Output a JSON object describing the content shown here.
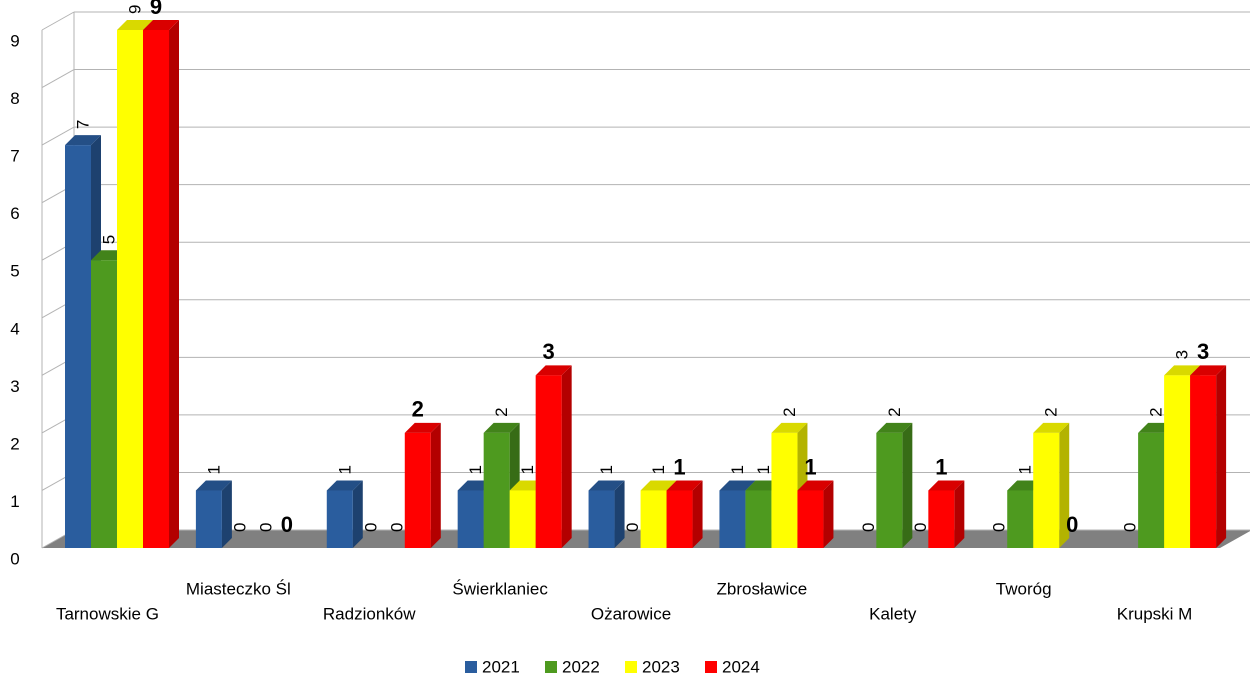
{
  "chart_data": {
    "type": "bar3d",
    "categories": [
      "Tarnowskie G",
      "Miasteczko Śl",
      "Radzionków",
      "Świerklaniec",
      "Ożarowice",
      "Zbrosławice",
      "Kalety",
      "Tworóg",
      "Krupski M"
    ],
    "series": [
      {
        "name": "2021",
        "color": "#2a5d9e",
        "values": [
          7,
          1,
          1,
          1,
          1,
          1,
          0,
          0,
          0
        ]
      },
      {
        "name": "2022",
        "color": "#4e9a1f",
        "values": [
          5,
          0,
          0,
          2,
          0,
          1,
          2,
          1,
          2
        ]
      },
      {
        "name": "2023",
        "color": "#ffff00",
        "values": [
          9,
          0,
          0,
          1,
          1,
          2,
          0,
          2,
          3
        ]
      },
      {
        "name": "2024",
        "color": "#ff0000",
        "values": [
          9,
          0,
          2,
          3,
          1,
          1,
          1,
          0,
          3
        ]
      }
    ],
    "ylim": [
      0,
      9
    ],
    "yticks": [
      0,
      1,
      2,
      3,
      4,
      5,
      6,
      7,
      8,
      9
    ],
    "grid": true,
    "legend": "bottom"
  }
}
